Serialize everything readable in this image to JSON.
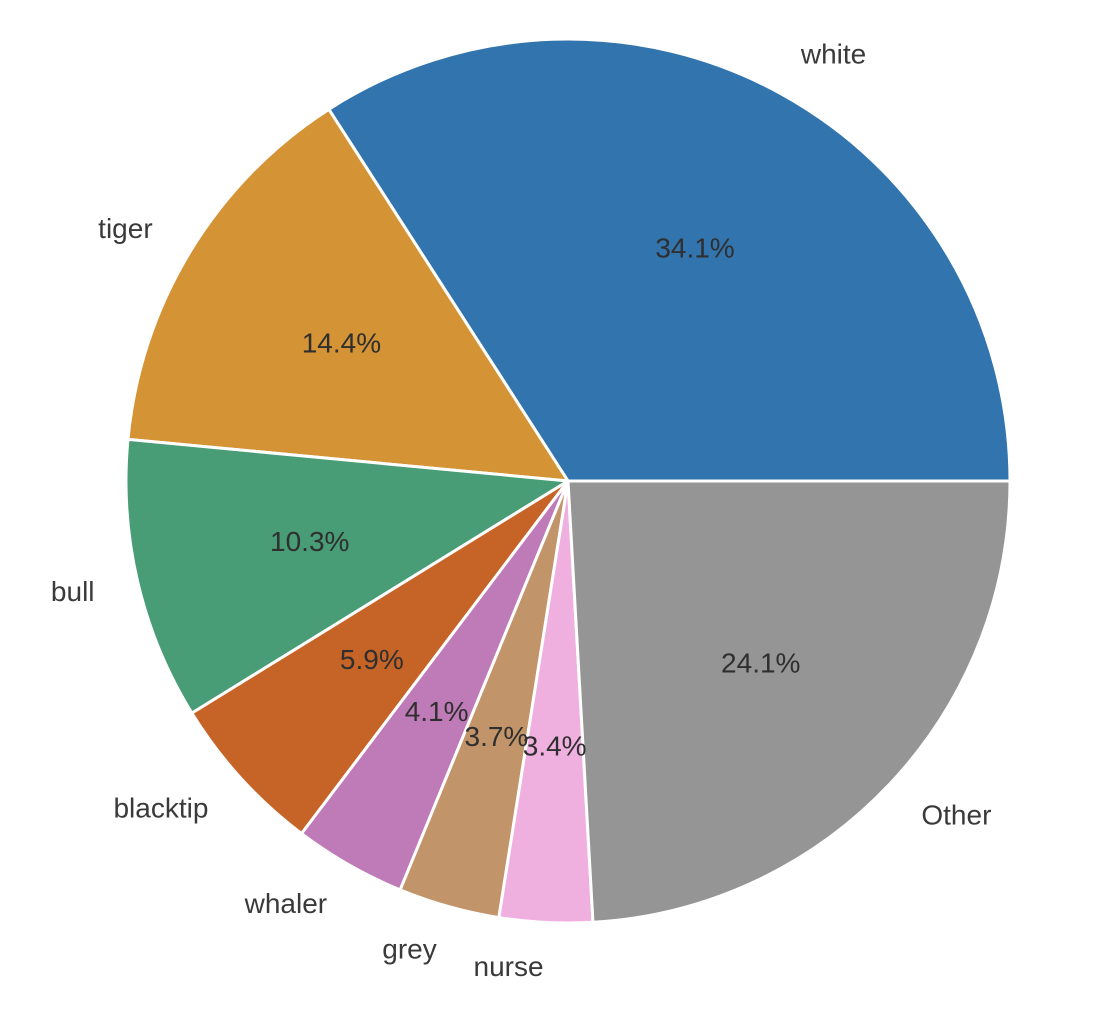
{
  "chart_data": {
    "type": "pie",
    "title": "",
    "categories": [
      "white",
      "tiger",
      "bull",
      "blacktip",
      "whaler",
      "grey",
      "nurse",
      "Other"
    ],
    "values": [
      34.1,
      14.4,
      10.3,
      5.9,
      4.1,
      3.7,
      3.4,
      24.1
    ],
    "value_labels": [
      "34.1%",
      "14.4%",
      "10.3%",
      "5.9%",
      "4.1%",
      "3.7%",
      "3.4%",
      "24.1%"
    ],
    "colors": [
      "#3274ad",
      "#d49335",
      "#489c76",
      "#c66428",
      "#bf7ab8",
      "#c29469",
      "#efb0e0",
      "#959595"
    ],
    "start_angle_deg": 0,
    "direction": "counterclockwise",
    "legend": "none"
  }
}
